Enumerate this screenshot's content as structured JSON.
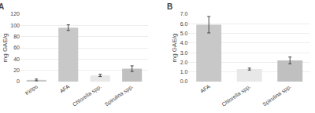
{
  "chart_data": [
    {
      "type": "bar",
      "title": "A",
      "categories": [
        "Kelps",
        "AFA",
        "Chlorella spp.",
        "Spirulina spp."
      ],
      "values": [
        3,
        96,
        11,
        23
      ],
      "errors": [
        1.5,
        5,
        2,
        5
      ],
      "colors": [
        "#c8c8c8",
        "#c8c8c8",
        "#e8e8e8",
        "#c0c0c0"
      ],
      "ylabel": "mg GAE/g",
      "ylim": [
        0,
        120
      ],
      "yticks": [
        0,
        20,
        40,
        60,
        80,
        100,
        120
      ],
      "grid": true
    },
    {
      "type": "bar",
      "title": "B",
      "categories": [
        "AFA",
        "Chlorella spp.",
        "Spirulina spp."
      ],
      "values": [
        5.9,
        1.3,
        2.2
      ],
      "errors": [
        0.85,
        0.1,
        0.35
      ],
      "colors": [
        "#c8c8c8",
        "#e8e8e8",
        "#c0c0c0"
      ],
      "ylabel": "mg GAE/g",
      "ylim": [
        0,
        7.0
      ],
      "yticks": [
        {
          "value": 0.0,
          "label": "0.0"
        },
        {
          "value": 1.0,
          "label": "1.0"
        },
        {
          "value": 2.0,
          "label": "2.0"
        },
        {
          "value": 3.0,
          "label": "3.0"
        },
        {
          "value": 4.0,
          "label": "4.0"
        },
        {
          "value": 5.0,
          "label": "5.0"
        },
        {
          "value": 6.0,
          "label": "6.0"
        },
        {
          "value": 7.0,
          "label": "7.0"
        }
      ],
      "grid": true
    }
  ]
}
